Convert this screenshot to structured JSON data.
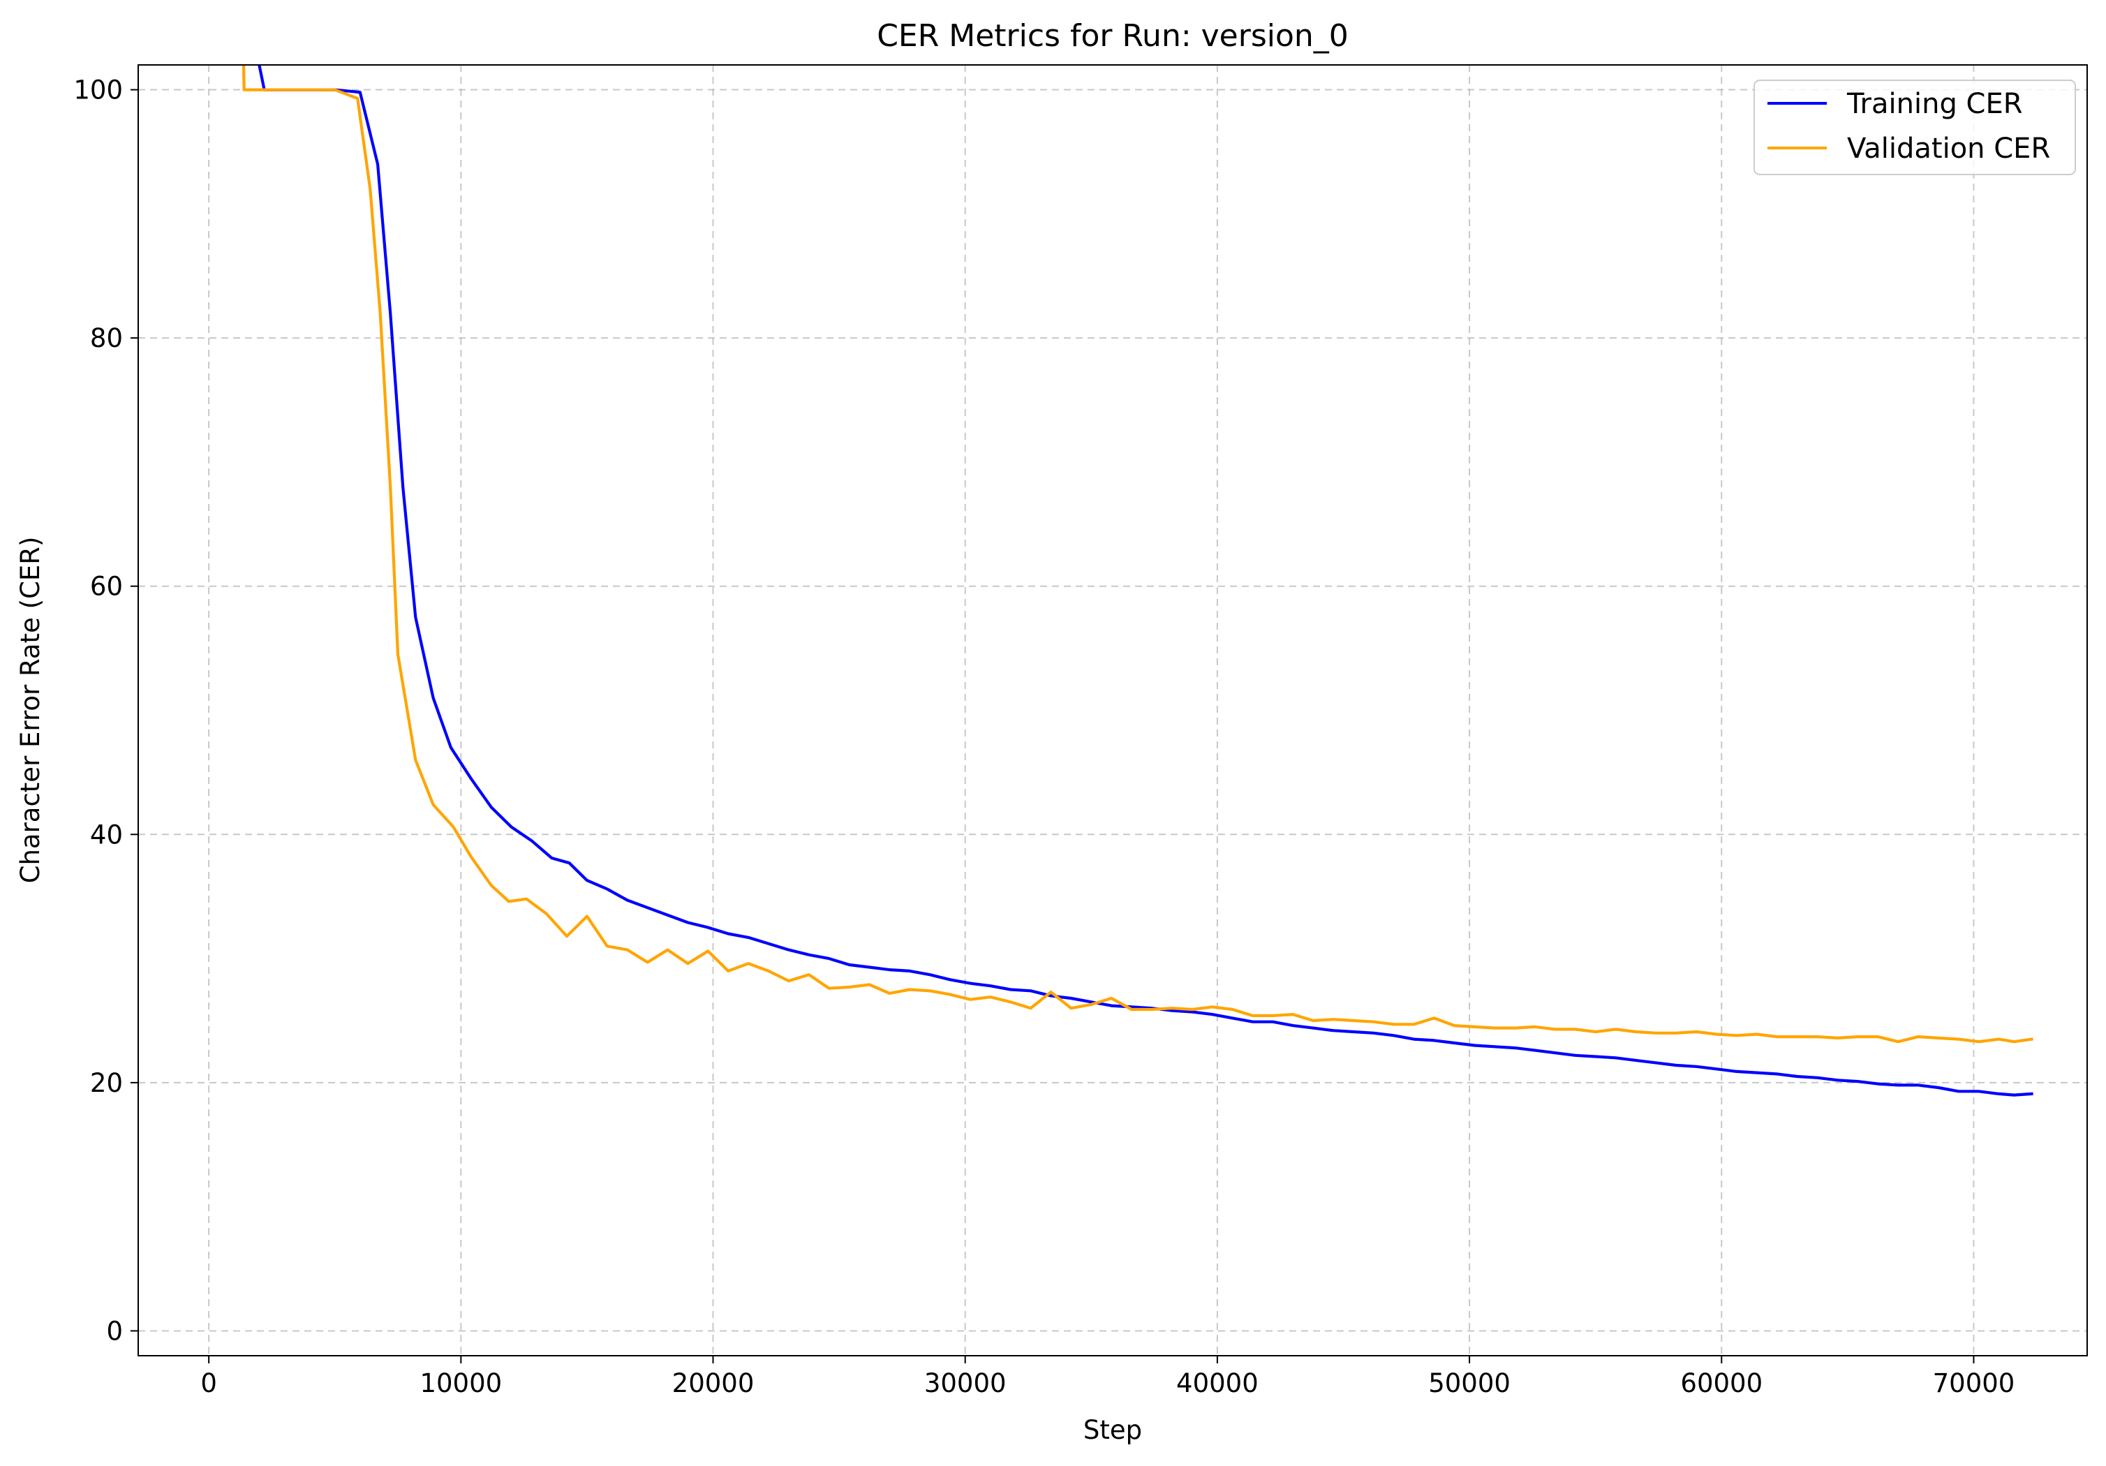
{
  "chart_data": {
    "type": "line",
    "title": "CER Metrics for Run: version_0",
    "xlabel": "Step",
    "ylabel": "Character Error Rate (CER)",
    "xlim": [
      -2800,
      74500
    ],
    "ylim": [
      -2,
      102
    ],
    "xticks": [
      0,
      10000,
      20000,
      30000,
      40000,
      50000,
      60000,
      70000
    ],
    "yticks": [
      0,
      20,
      40,
      60,
      80,
      100
    ],
    "grid": true,
    "legend_position": "top-right",
    "series": [
      {
        "name": "Training CER",
        "color": "#0000ff",
        "points": [
          [
            1400,
            115
          ],
          [
            1800,
            104
          ],
          [
            2200,
            100
          ],
          [
            3000,
            100
          ],
          [
            4000,
            100
          ],
          [
            5000,
            100
          ],
          [
            6000,
            99.8
          ],
          [
            6700,
            94
          ],
          [
            7200,
            82
          ],
          [
            7700,
            68
          ],
          [
            8200,
            57.5
          ],
          [
            8900,
            51
          ],
          [
            9600,
            47
          ],
          [
            10400,
            44.5
          ],
          [
            11200,
            42.2
          ],
          [
            12000,
            40.6
          ],
          [
            12800,
            39.5
          ],
          [
            13600,
            38.1
          ],
          [
            14300,
            37.7
          ],
          [
            15000,
            36.3
          ],
          [
            15800,
            35.6
          ],
          [
            16600,
            34.7
          ],
          [
            17400,
            34.1
          ],
          [
            18200,
            33.5
          ],
          [
            19000,
            32.9
          ],
          [
            19800,
            32.5
          ],
          [
            20600,
            32
          ],
          [
            21400,
            31.7
          ],
          [
            22200,
            31.2
          ],
          [
            23000,
            30.7
          ],
          [
            23800,
            30.3
          ],
          [
            24600,
            30
          ],
          [
            25400,
            29.5
          ],
          [
            26200,
            29.3
          ],
          [
            27000,
            29.1
          ],
          [
            27800,
            29
          ],
          [
            28600,
            28.7
          ],
          [
            29400,
            28.3
          ],
          [
            30200,
            28
          ],
          [
            31000,
            27.8
          ],
          [
            31800,
            27.5
          ],
          [
            32600,
            27.4
          ],
          [
            33400,
            27
          ],
          [
            34200,
            26.8
          ],
          [
            35000,
            26.5
          ],
          [
            35800,
            26.2
          ],
          [
            36600,
            26.1
          ],
          [
            37400,
            26
          ],
          [
            38200,
            25.8
          ],
          [
            39000,
            25.7
          ],
          [
            39800,
            25.5
          ],
          [
            40600,
            25.2
          ],
          [
            41400,
            24.9
          ],
          [
            42200,
            24.9
          ],
          [
            43000,
            24.6
          ],
          [
            43800,
            24.4
          ],
          [
            44600,
            24.2
          ],
          [
            45400,
            24.1
          ],
          [
            46200,
            24
          ],
          [
            47000,
            23.8
          ],
          [
            47800,
            23.5
          ],
          [
            48600,
            23.4
          ],
          [
            49400,
            23.2
          ],
          [
            50200,
            23
          ],
          [
            51000,
            22.9
          ],
          [
            51800,
            22.8
          ],
          [
            52600,
            22.6
          ],
          [
            53400,
            22.4
          ],
          [
            54200,
            22.2
          ],
          [
            55000,
            22.1
          ],
          [
            55800,
            22
          ],
          [
            56600,
            21.8
          ],
          [
            57400,
            21.6
          ],
          [
            58200,
            21.4
          ],
          [
            59000,
            21.3
          ],
          [
            59800,
            21.1
          ],
          [
            60600,
            20.9
          ],
          [
            61400,
            20.8
          ],
          [
            62200,
            20.7
          ],
          [
            63000,
            20.5
          ],
          [
            63800,
            20.4
          ],
          [
            64600,
            20.2
          ],
          [
            65400,
            20.1
          ],
          [
            66200,
            19.9
          ],
          [
            67000,
            19.8
          ],
          [
            67800,
            19.8
          ],
          [
            68600,
            19.6
          ],
          [
            69400,
            19.3
          ],
          [
            70200,
            19.3
          ],
          [
            71000,
            19.1
          ],
          [
            71600,
            19
          ],
          [
            72300,
            19.1
          ]
        ]
      },
      {
        "name": "Validation CER",
        "color": "#ffa500",
        "points": [
          [
            1250,
            115
          ],
          [
            1400,
            100
          ],
          [
            2200,
            100
          ],
          [
            3000,
            100
          ],
          [
            4000,
            100
          ],
          [
            5000,
            100
          ],
          [
            5900,
            99.3
          ],
          [
            6400,
            92
          ],
          [
            6800,
            82
          ],
          [
            7200,
            68
          ],
          [
            7500,
            54.5
          ],
          [
            8200,
            46
          ],
          [
            8900,
            42.4
          ],
          [
            9700,
            40.6
          ],
          [
            10400,
            38.2
          ],
          [
            11200,
            35.9
          ],
          [
            11900,
            34.6
          ],
          [
            12600,
            34.8
          ],
          [
            13400,
            33.6
          ],
          [
            14200,
            31.8
          ],
          [
            15000,
            33.4
          ],
          [
            15800,
            31
          ],
          [
            16600,
            30.7
          ],
          [
            17400,
            29.7
          ],
          [
            18200,
            30.7
          ],
          [
            19000,
            29.6
          ],
          [
            19800,
            30.6
          ],
          [
            20600,
            29
          ],
          [
            21400,
            29.6
          ],
          [
            22200,
            29
          ],
          [
            23000,
            28.2
          ],
          [
            23800,
            28.7
          ],
          [
            24600,
            27.6
          ],
          [
            25400,
            27.7
          ],
          [
            26200,
            27.9
          ],
          [
            27000,
            27.2
          ],
          [
            27800,
            27.5
          ],
          [
            28600,
            27.4
          ],
          [
            29400,
            27.1
          ],
          [
            30200,
            26.7
          ],
          [
            31000,
            26.9
          ],
          [
            31800,
            26.5
          ],
          [
            32600,
            26
          ],
          [
            33400,
            27.3
          ],
          [
            34200,
            26
          ],
          [
            35000,
            26.3
          ],
          [
            35800,
            26.8
          ],
          [
            36600,
            25.9
          ],
          [
            37400,
            25.9
          ],
          [
            38200,
            26
          ],
          [
            39000,
            25.9
          ],
          [
            39800,
            26.1
          ],
          [
            40600,
            25.9
          ],
          [
            41400,
            25.4
          ],
          [
            42200,
            25.4
          ],
          [
            43000,
            25.5
          ],
          [
            43800,
            25
          ],
          [
            44600,
            25.1
          ],
          [
            45400,
            25
          ],
          [
            46200,
            24.9
          ],
          [
            47000,
            24.7
          ],
          [
            47800,
            24.7
          ],
          [
            48600,
            25.2
          ],
          [
            49400,
            24.6
          ],
          [
            50200,
            24.5
          ],
          [
            51000,
            24.4
          ],
          [
            51800,
            24.4
          ],
          [
            52600,
            24.5
          ],
          [
            53400,
            24.3
          ],
          [
            54200,
            24.3
          ],
          [
            55000,
            24.1
          ],
          [
            55800,
            24.3
          ],
          [
            56600,
            24.1
          ],
          [
            57400,
            24
          ],
          [
            58200,
            24
          ],
          [
            59000,
            24.1
          ],
          [
            59800,
            23.9
          ],
          [
            60600,
            23.8
          ],
          [
            61400,
            23.9
          ],
          [
            62200,
            23.7
          ],
          [
            63000,
            23.7
          ],
          [
            63800,
            23.7
          ],
          [
            64600,
            23.6
          ],
          [
            65400,
            23.7
          ],
          [
            66200,
            23.7
          ],
          [
            67000,
            23.3
          ],
          [
            67800,
            23.7
          ],
          [
            68600,
            23.6
          ],
          [
            69400,
            23.5
          ],
          [
            70200,
            23.3
          ],
          [
            71000,
            23.5
          ],
          [
            71600,
            23.3
          ],
          [
            72300,
            23.5
          ]
        ]
      }
    ]
  }
}
